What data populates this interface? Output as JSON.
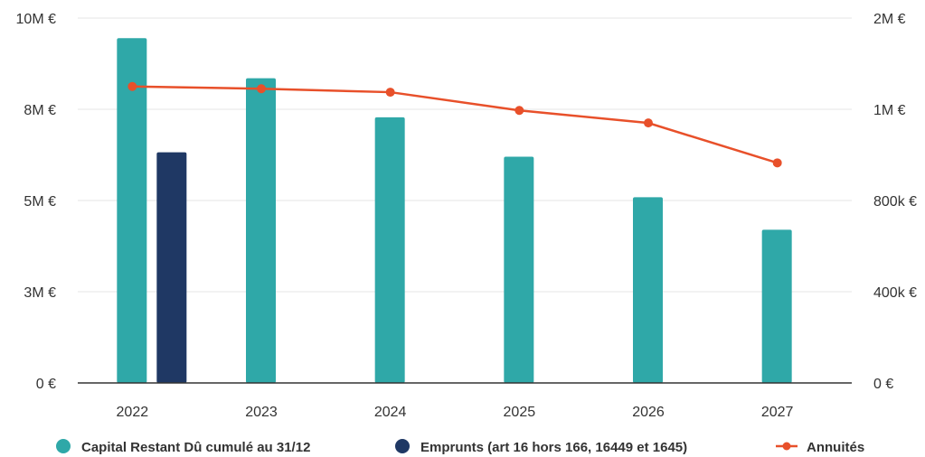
{
  "chart_data": {
    "type": "bar",
    "categories": [
      "2022",
      "2023",
      "2024",
      "2025",
      "2026",
      "2027"
    ],
    "y_left": {
      "ticks": [
        {
          "value": 0,
          "label": "0 €"
        },
        {
          "value": 2500000,
          "label": "3M €"
        },
        {
          "value": 5000000,
          "label": "5M €"
        },
        {
          "value": 7500000,
          "label": "8M €"
        },
        {
          "value": 10000000,
          "label": "10M €"
        }
      ],
      "ylim": [
        0,
        10000000
      ]
    },
    "y_right": {
      "ticks": [
        {
          "value": 0,
          "label": "0 €"
        },
        {
          "value": 400000,
          "label": "400k €"
        },
        {
          "value": 800000,
          "label": "800k €"
        },
        {
          "value": 1200000,
          "label": "1M €"
        },
        {
          "value": 1600000,
          "label": "2M €"
        }
      ],
      "ylim": [
        0,
        1600000
      ]
    },
    "series": [
      {
        "name": "Capital Restant Dû cumulé au 31/12",
        "type": "bar",
        "axis": "left",
        "color": "#2fa8a8",
        "values": [
          9450000,
          8350000,
          7280000,
          6200000,
          5090000,
          4200000
        ]
      },
      {
        "name": "Emprunts (art 16 hors 166, 16449 et 1645)",
        "type": "bar",
        "axis": "left",
        "color": "#1f3864",
        "values": [
          6320000,
          0,
          0,
          0,
          0,
          0
        ]
      },
      {
        "name": "Annuités",
        "type": "line",
        "axis": "right",
        "color": "#e8502a",
        "values": [
          1300000,
          1290000,
          1275000,
          1195000,
          1140000,
          965000
        ]
      }
    ],
    "grid": true,
    "legend": "bottom"
  }
}
